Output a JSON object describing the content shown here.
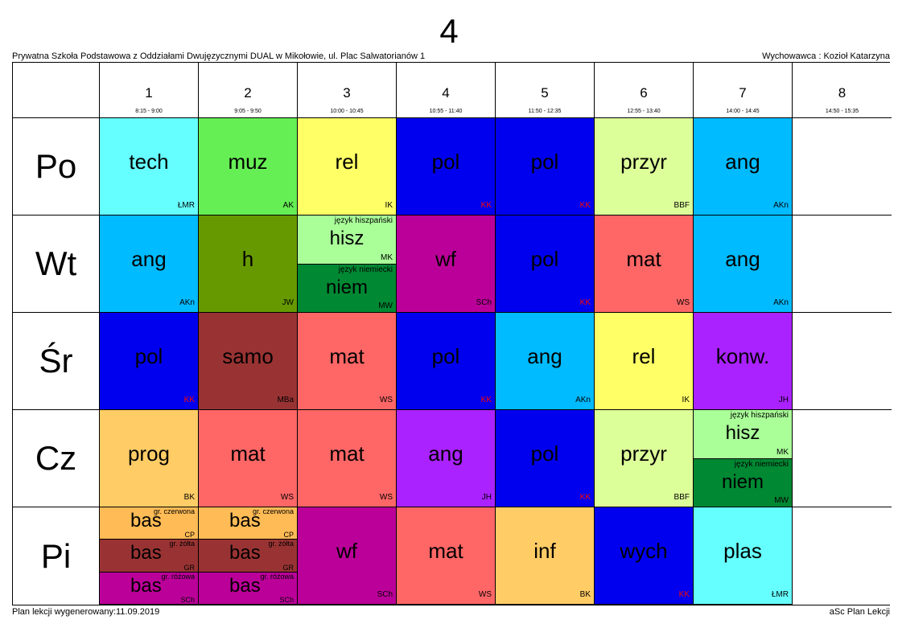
{
  "title": "4",
  "school": "Prywatna Szkoła Podstawowa z Oddziałami Dwujęzycznymi DUAL w Mikołowie, ul. Plac Salwatorianów 1",
  "homeroom": "Wychowawca : Kozioł Katarzyna",
  "footer_left": "Plan lekcji wygenerowany:11.09.2019",
  "footer_right": "aSc Plan Lekcji",
  "periods": [
    {
      "num": "1",
      "time": "8:15 - 9:00"
    },
    {
      "num": "2",
      "time": "9:05 - 9:50"
    },
    {
      "num": "3",
      "time": "10:00 - 10:45"
    },
    {
      "num": "4",
      "time": "10:55 - 11:40"
    },
    {
      "num": "5",
      "time": "11:50 - 12:35"
    },
    {
      "num": "6",
      "time": "12:55 - 13:40"
    },
    {
      "num": "7",
      "time": "14:00 - 14:45"
    },
    {
      "num": "8",
      "time": "14:50 - 15:35"
    }
  ],
  "days": [
    "Po",
    "Wt",
    "Śr",
    "Cz",
    "Pi"
  ],
  "lessons": [
    {
      "day": 0,
      "period": 0,
      "subject": "tech",
      "teacher": "ŁMR",
      "color": "#66ffff"
    },
    {
      "day": 0,
      "period": 1,
      "subject": "muz",
      "teacher": "AK",
      "color": "#66ee55"
    },
    {
      "day": 0,
      "period": 2,
      "subject": "rel",
      "teacher": "IK",
      "color": "#ffff66"
    },
    {
      "day": 0,
      "period": 3,
      "subject": "pol",
      "teacher": "KK",
      "color": "#0000ee"
    },
    {
      "day": 0,
      "period": 4,
      "subject": "pol",
      "teacher": "KK",
      "color": "#0000ee"
    },
    {
      "day": 0,
      "period": 5,
      "subject": "przyr",
      "teacher": "BBF",
      "color": "#ddff99"
    },
    {
      "day": 0,
      "period": 6,
      "subject": "ang",
      "teacher": "AKn",
      "color": "#00bbff"
    },
    {
      "day": 1,
      "period": 0,
      "subject": "ang",
      "teacher": "AKn",
      "color": "#00bbff"
    },
    {
      "day": 1,
      "period": 1,
      "subject": "h",
      "teacher": "JW",
      "color": "#669900"
    },
    {
      "day": 1,
      "period": 2,
      "subject": "hisz",
      "teacher": "MK",
      "group": "język hiszpański",
      "color": "#aaff99",
      "part": 0,
      "parts": 2
    },
    {
      "day": 1,
      "period": 2,
      "subject": "niem",
      "teacher": "MW",
      "group": "język niemiecki",
      "color": "#008833",
      "part": 1,
      "parts": 2
    },
    {
      "day": 1,
      "period": 3,
      "subject": "wf",
      "teacher": "SCh",
      "color": "#bb0099"
    },
    {
      "day": 1,
      "period": 4,
      "subject": "pol",
      "teacher": "KK",
      "color": "#0000ee"
    },
    {
      "day": 1,
      "period": 5,
      "subject": "mat",
      "teacher": "WS",
      "color": "#ff6666"
    },
    {
      "day": 1,
      "period": 6,
      "subject": "ang",
      "teacher": "AKn",
      "color": "#00bbff"
    },
    {
      "day": 2,
      "period": 0,
      "subject": "pol",
      "teacher": "KK",
      "color": "#0000ee"
    },
    {
      "day": 2,
      "period": 1,
      "subject": "samo",
      "teacher": "MBa",
      "color": "#993333"
    },
    {
      "day": 2,
      "period": 2,
      "subject": "mat",
      "teacher": "WS",
      "color": "#ff6666"
    },
    {
      "day": 2,
      "period": 3,
      "subject": "pol",
      "teacher": "KK",
      "color": "#0000ee"
    },
    {
      "day": 2,
      "period": 4,
      "subject": "ang",
      "teacher": "AKn",
      "color": "#00bbff"
    },
    {
      "day": 2,
      "period": 5,
      "subject": "rel",
      "teacher": "IK",
      "color": "#ffff66"
    },
    {
      "day": 2,
      "period": 6,
      "subject": "konw.",
      "teacher": "JH",
      "color": "#aa22ff"
    },
    {
      "day": 3,
      "period": 0,
      "subject": "prog",
      "teacher": "BK",
      "color": "#ffcc66"
    },
    {
      "day": 3,
      "period": 1,
      "subject": "mat",
      "teacher": "WS",
      "color": "#ff6666"
    },
    {
      "day": 3,
      "period": 2,
      "subject": "mat",
      "teacher": "WS",
      "color": "#ff6666"
    },
    {
      "day": 3,
      "period": 3,
      "subject": "ang",
      "teacher": "JH",
      "color": "#aa22ff"
    },
    {
      "day": 3,
      "period": 4,
      "subject": "pol",
      "teacher": "KK",
      "color": "#0000ee"
    },
    {
      "day": 3,
      "period": 5,
      "subject": "przyr",
      "teacher": "BBF",
      "color": "#ddff99"
    },
    {
      "day": 3,
      "period": 6,
      "subject": "hisz",
      "teacher": "MK",
      "group": "język hiszpański",
      "color": "#aaff99",
      "part": 0,
      "parts": 2
    },
    {
      "day": 3,
      "period": 6,
      "subject": "niem",
      "teacher": "MW",
      "group": "język niemiecki",
      "color": "#008833",
      "part": 1,
      "parts": 2
    },
    {
      "day": 4,
      "period": 0,
      "subject": "bas",
      "teacher": "CP",
      "group": "gr. czerwona",
      "color": "#ffbb55",
      "part": 0,
      "parts": 3
    },
    {
      "day": 4,
      "period": 0,
      "subject": "bas",
      "teacher": "GR",
      "group": "gr. żółta",
      "color": "#993333",
      "part": 1,
      "parts": 3
    },
    {
      "day": 4,
      "period": 0,
      "subject": "bas",
      "teacher": "SCh",
      "group": "gr. różowa",
      "color": "#bb0099",
      "part": 2,
      "parts": 3
    },
    {
      "day": 4,
      "period": 1,
      "subject": "bas",
      "teacher": "CP",
      "group": "gr. czerwona",
      "color": "#ffbb55",
      "part": 0,
      "parts": 3
    },
    {
      "day": 4,
      "period": 1,
      "subject": "bas",
      "teacher": "GR",
      "group": "gr. żółta",
      "color": "#993333",
      "part": 1,
      "parts": 3
    },
    {
      "day": 4,
      "period": 1,
      "subject": "bas",
      "teacher": "SCh",
      "group": "gr. różowa",
      "color": "#bb0099",
      "part": 2,
      "parts": 3
    },
    {
      "day": 4,
      "period": 2,
      "subject": "wf",
      "teacher": "SCh",
      "color": "#bb0099"
    },
    {
      "day": 4,
      "period": 3,
      "subject": "mat",
      "teacher": "WS",
      "color": "#ff6666"
    },
    {
      "day": 4,
      "period": 4,
      "subject": "inf",
      "teacher": "BK",
      "color": "#ffcc66"
    },
    {
      "day": 4,
      "period": 5,
      "subject": "wych",
      "teacher": "KK",
      "color": "#0000ee"
    },
    {
      "day": 4,
      "period": 6,
      "subject": "plas",
      "teacher": "ŁMR",
      "color": "#66ffff"
    }
  ]
}
